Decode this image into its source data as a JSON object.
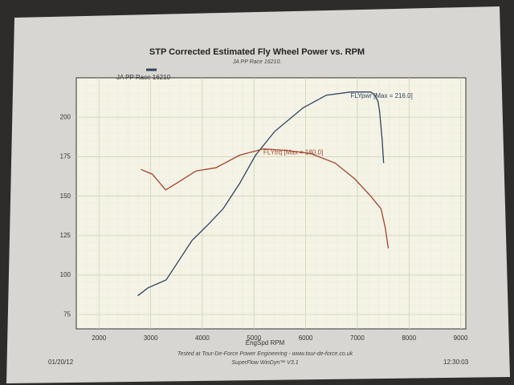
{
  "chart_data": {
    "type": "line",
    "title": "STP Corrected Estimated Fly Wheel Power vs. RPM",
    "subtitle": "JA PP Race 16210.",
    "legend": "JA PP Race 16210",
    "x_label": "EngSpd RPM",
    "footer": "Tested at Tour-De-Force Power Engineering - www.tour-de-force.co.uk",
    "software": "SuperFlow WinDyn™ V3.1",
    "date": "01/20/12",
    "time": "12:30:03",
    "xlim": [
      1560,
      9100
    ],
    "ylim": [
      66,
      225
    ],
    "xticks": [
      2000,
      3000,
      4000,
      5000,
      6000,
      7000,
      8000,
      9000
    ],
    "yticks": [
      75,
      100,
      125,
      150,
      175,
      200
    ],
    "grid": true,
    "series": [
      {
        "name": "FLYpwr [Max = 216.0]",
        "color": "#2f4360",
        "x": [
          2750,
          2950,
          3300,
          3500,
          3800,
          4140,
          4400,
          4720,
          5030,
          5400,
          5950,
          6400,
          6870,
          7260,
          7340,
          7400,
          7430,
          7480,
          7510
        ],
        "values": [
          87,
          92,
          97,
          107,
          122,
          133,
          142,
          158,
          176,
          191,
          206,
          214,
          216,
          216,
          214,
          210,
          204,
          186,
          171
        ]
      },
      {
        "name": "FLYtrq [Max = 180.0]",
        "color": "#a4442c",
        "x": [
          2810,
          3030,
          3290,
          3490,
          3880,
          4260,
          4720,
          5180,
          5640,
          6100,
          6570,
          6950,
          7260,
          7460,
          7540,
          7600
        ],
        "values": [
          167,
          164,
          154,
          158,
          166,
          168,
          176,
          180,
          179,
          177,
          171,
          161,
          150,
          142,
          130,
          117
        ]
      }
    ]
  }
}
